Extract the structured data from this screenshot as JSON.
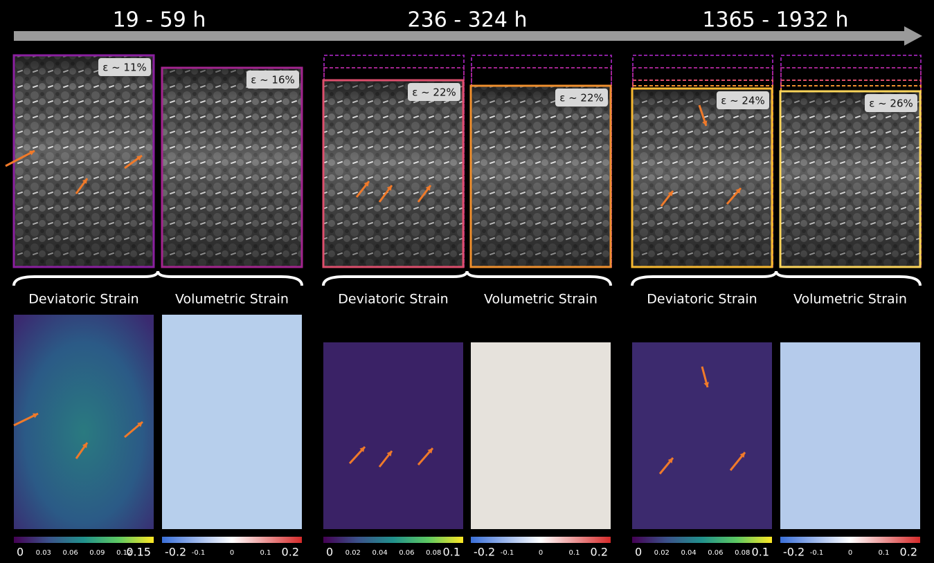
{
  "header": {
    "periods": [
      "19 - 59 h",
      "236 - 324 h",
      "1365 - 1932 h"
    ]
  },
  "groups": [
    {
      "images": [
        {
          "strain": "ε ~ 11%"
        },
        {
          "strain": "ε ~ 16%"
        }
      ],
      "maps": [
        {
          "label": "Deviatoric Strain",
          "ticks": [
            "0",
            "0.03",
            "0.06",
            "0.09",
            "0.12",
            "0.15"
          ]
        },
        {
          "label": "Volumetric Strain",
          "ticks": [
            "-0.2",
            "-0.1",
            "0",
            "0.1",
            "0.2"
          ]
        }
      ]
    },
    {
      "images": [
        {
          "strain": "ε ~ 22%"
        },
        {
          "strain": "ε ~ 22%"
        }
      ],
      "maps": [
        {
          "label": "Deviatoric Strain",
          "ticks": [
            "0",
            "0.02",
            "0.04",
            "0.06",
            "0.08",
            "0.1"
          ]
        },
        {
          "label": "Volumetric Strain",
          "ticks": [
            "-0.2",
            "-0.1",
            "0",
            "0.1",
            "0.2"
          ]
        }
      ]
    },
    {
      "images": [
        {
          "strain": "ε ~ 24%"
        },
        {
          "strain": "ε ~ 26%"
        }
      ],
      "maps": [
        {
          "label": "Deviatoric Strain",
          "ticks": [
            "0",
            "0.02",
            "0.04",
            "0.06",
            "0.08",
            "0.1"
          ]
        },
        {
          "label": "Volumetric Strain",
          "ticks": [
            "-0.2",
            "-0.1",
            "0",
            "0.1",
            "0.2"
          ]
        }
      ]
    }
  ]
}
